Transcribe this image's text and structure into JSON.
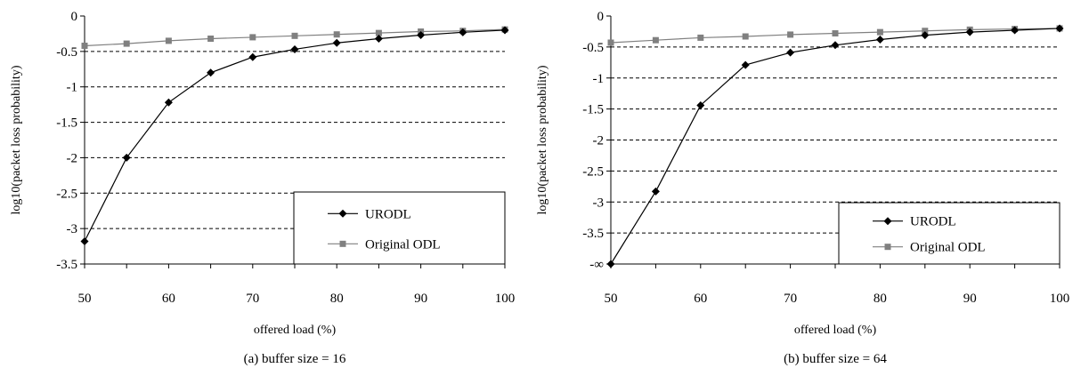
{
  "chart_data": [
    {
      "type": "line",
      "caption": "(a) buffer size = 16",
      "xlabel": "offered load (%)",
      "ylabel": "log10(packet loss probability)",
      "x": [
        50,
        55,
        60,
        65,
        70,
        75,
        80,
        85,
        90,
        95,
        100
      ],
      "xticks": [
        "50",
        "60",
        "70",
        "80",
        "90",
        "100"
      ],
      "yticks": [
        "0",
        "-0.5",
        "-1",
        "-1.5",
        "-2",
        "-2.5",
        "-3",
        "-3.5"
      ],
      "xlim": [
        50,
        100
      ],
      "ylim": [
        -3.5,
        0
      ],
      "grid": "horizontal dashed",
      "legend_position": "bottom-right",
      "series": [
        {
          "name": "URODL",
          "marker": "diamond",
          "color": "#000000",
          "values": [
            -3.18,
            -2.0,
            -1.22,
            -0.8,
            -0.58,
            -0.47,
            -0.38,
            -0.32,
            -0.27,
            -0.23,
            -0.2
          ]
        },
        {
          "name": "Original ODL",
          "marker": "square",
          "color": "#808080",
          "values": [
            -0.42,
            -0.39,
            -0.35,
            -0.32,
            -0.3,
            -0.28,
            -0.26,
            -0.24,
            -0.22,
            -0.21,
            -0.19
          ]
        }
      ]
    },
    {
      "type": "line",
      "caption": "(b) buffer size = 64",
      "xlabel": "offered load (%)",
      "ylabel": "log10(packet loss probability)",
      "x": [
        50,
        55,
        60,
        65,
        70,
        75,
        80,
        85,
        90,
        95,
        100
      ],
      "xticks": [
        "50",
        "60",
        "70",
        "80",
        "90",
        "100"
      ],
      "yticks": [
        "0",
        "-0.5",
        "-1",
        "-1.5",
        "-2",
        "-2.5",
        "-3",
        "-3.5",
        "-∞"
      ],
      "xlim": [
        50,
        100
      ],
      "ylim": [
        -4,
        0
      ],
      "grid": "horizontal dashed",
      "legend_position": "bottom-right",
      "series": [
        {
          "name": "URODL",
          "marker": "diamond",
          "color": "#000000",
          "values": [
            -4.0,
            -2.83,
            -1.44,
            -0.79,
            -0.59,
            -0.47,
            -0.38,
            -0.31,
            -0.26,
            -0.23,
            -0.2
          ]
        },
        {
          "name": "Original ODL",
          "marker": "square",
          "color": "#808080",
          "values": [
            -0.43,
            -0.39,
            -0.35,
            -0.33,
            -0.3,
            -0.28,
            -0.26,
            -0.24,
            -0.22,
            -0.21,
            -0.2
          ]
        }
      ]
    }
  ]
}
